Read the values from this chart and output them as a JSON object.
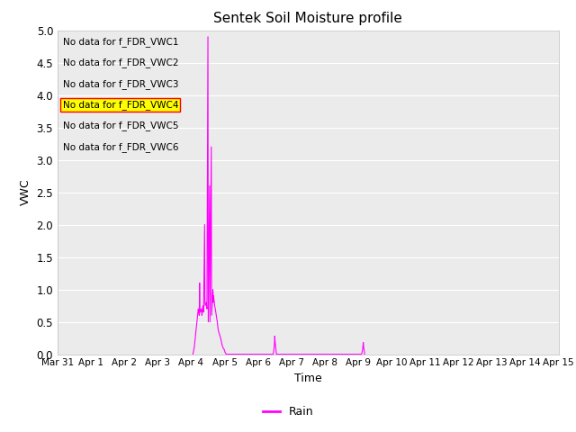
{
  "title": "Sentek Soil Moisture profile",
  "xlabel": "Time",
  "ylabel": "VWC",
  "ylim": [
    0.0,
    5.0
  ],
  "yticks": [
    0.0,
    0.5,
    1.0,
    1.5,
    2.0,
    2.5,
    3.0,
    3.5,
    4.0,
    4.5,
    5.0
  ],
  "xtick_labels": [
    "Mar 31",
    "Apr 1",
    "Apr 2",
    "Apr 3",
    "Apr 4",
    "Apr 5",
    "Apr 6",
    "Apr 7",
    "Apr 8",
    "Apr 9",
    "Apr 10",
    "Apr 11",
    "Apr 12",
    "Apr 13",
    "Apr 14",
    "Apr 15"
  ],
  "no_data_labels": [
    "No data for f_FDR_VWC1",
    "No data for f_FDR_VWC2",
    "No data for f_FDR_VWC3",
    "No data for f_FDR_VWC4",
    "No data for f_FDR_VWC5",
    "No data for f_FDR_VWC6"
  ],
  "vwc4_highlighted": true,
  "rain_color": "#ff00ff",
  "legend_label": "Rain",
  "plot_bg_color": "#ebebeb",
  "fig_bg_color": "#ffffff",
  "rain_data": [
    [
      4.05,
      0.0
    ],
    [
      4.07,
      0.05
    ],
    [
      4.08,
      0.08
    ],
    [
      4.09,
      0.1
    ],
    [
      4.1,
      0.15
    ],
    [
      4.11,
      0.2
    ],
    [
      4.12,
      0.25
    ],
    [
      4.13,
      0.3
    ],
    [
      4.14,
      0.35
    ],
    [
      4.15,
      0.4
    ],
    [
      4.16,
      0.45
    ],
    [
      4.17,
      0.5
    ],
    [
      4.18,
      0.55
    ],
    [
      4.19,
      0.6
    ],
    [
      4.2,
      0.65
    ],
    [
      4.21,
      0.7
    ],
    [
      4.22,
      0.68
    ],
    [
      4.23,
      0.65
    ],
    [
      4.24,
      0.6
    ],
    [
      4.25,
      1.1
    ],
    [
      4.26,
      0.7
    ],
    [
      4.27,
      0.65
    ],
    [
      4.3,
      0.7
    ],
    [
      4.31,
      0.65
    ],
    [
      4.32,
      0.6
    ],
    [
      4.35,
      0.75
    ],
    [
      4.36,
      0.7
    ],
    [
      4.37,
      0.65
    ],
    [
      4.4,
      2.0
    ],
    [
      4.41,
      0.8
    ],
    [
      4.42,
      0.75
    ],
    [
      4.45,
      0.8
    ],
    [
      4.46,
      0.75
    ],
    [
      4.47,
      0.7
    ],
    [
      4.5,
      4.9
    ],
    [
      4.51,
      0.5
    ],
    [
      4.55,
      2.6
    ],
    [
      4.56,
      0.5
    ],
    [
      4.6,
      3.2
    ],
    [
      4.61,
      0.6
    ],
    [
      4.65,
      1.0
    ],
    [
      4.66,
      0.8
    ],
    [
      4.67,
      0.9
    ],
    [
      4.68,
      0.85
    ],
    [
      4.69,
      0.8
    ],
    [
      4.7,
      0.75
    ],
    [
      4.72,
      0.7
    ],
    [
      4.75,
      0.6
    ],
    [
      4.78,
      0.5
    ],
    [
      4.8,
      0.4
    ],
    [
      4.82,
      0.35
    ],
    [
      4.85,
      0.3
    ],
    [
      4.88,
      0.25
    ],
    [
      4.9,
      0.2
    ],
    [
      4.92,
      0.15
    ],
    [
      4.95,
      0.1
    ],
    [
      4.98,
      0.08
    ],
    [
      5.0,
      0.05
    ],
    [
      5.02,
      0.02
    ],
    [
      5.05,
      0.0
    ],
    [
      6.45,
      0.0
    ],
    [
      6.47,
      0.05
    ],
    [
      6.48,
      0.1
    ],
    [
      6.49,
      0.15
    ],
    [
      6.5,
      0.28
    ],
    [
      6.51,
      0.2
    ],
    [
      6.52,
      0.15
    ],
    [
      6.53,
      0.1
    ],
    [
      6.54,
      0.05
    ],
    [
      6.55,
      0.0
    ],
    [
      9.1,
      0.0
    ],
    [
      9.12,
      0.05
    ],
    [
      9.13,
      0.08
    ],
    [
      9.15,
      0.18
    ],
    [
      9.16,
      0.12
    ],
    [
      9.17,
      0.08
    ],
    [
      9.18,
      0.05
    ],
    [
      9.19,
      0.0
    ]
  ]
}
